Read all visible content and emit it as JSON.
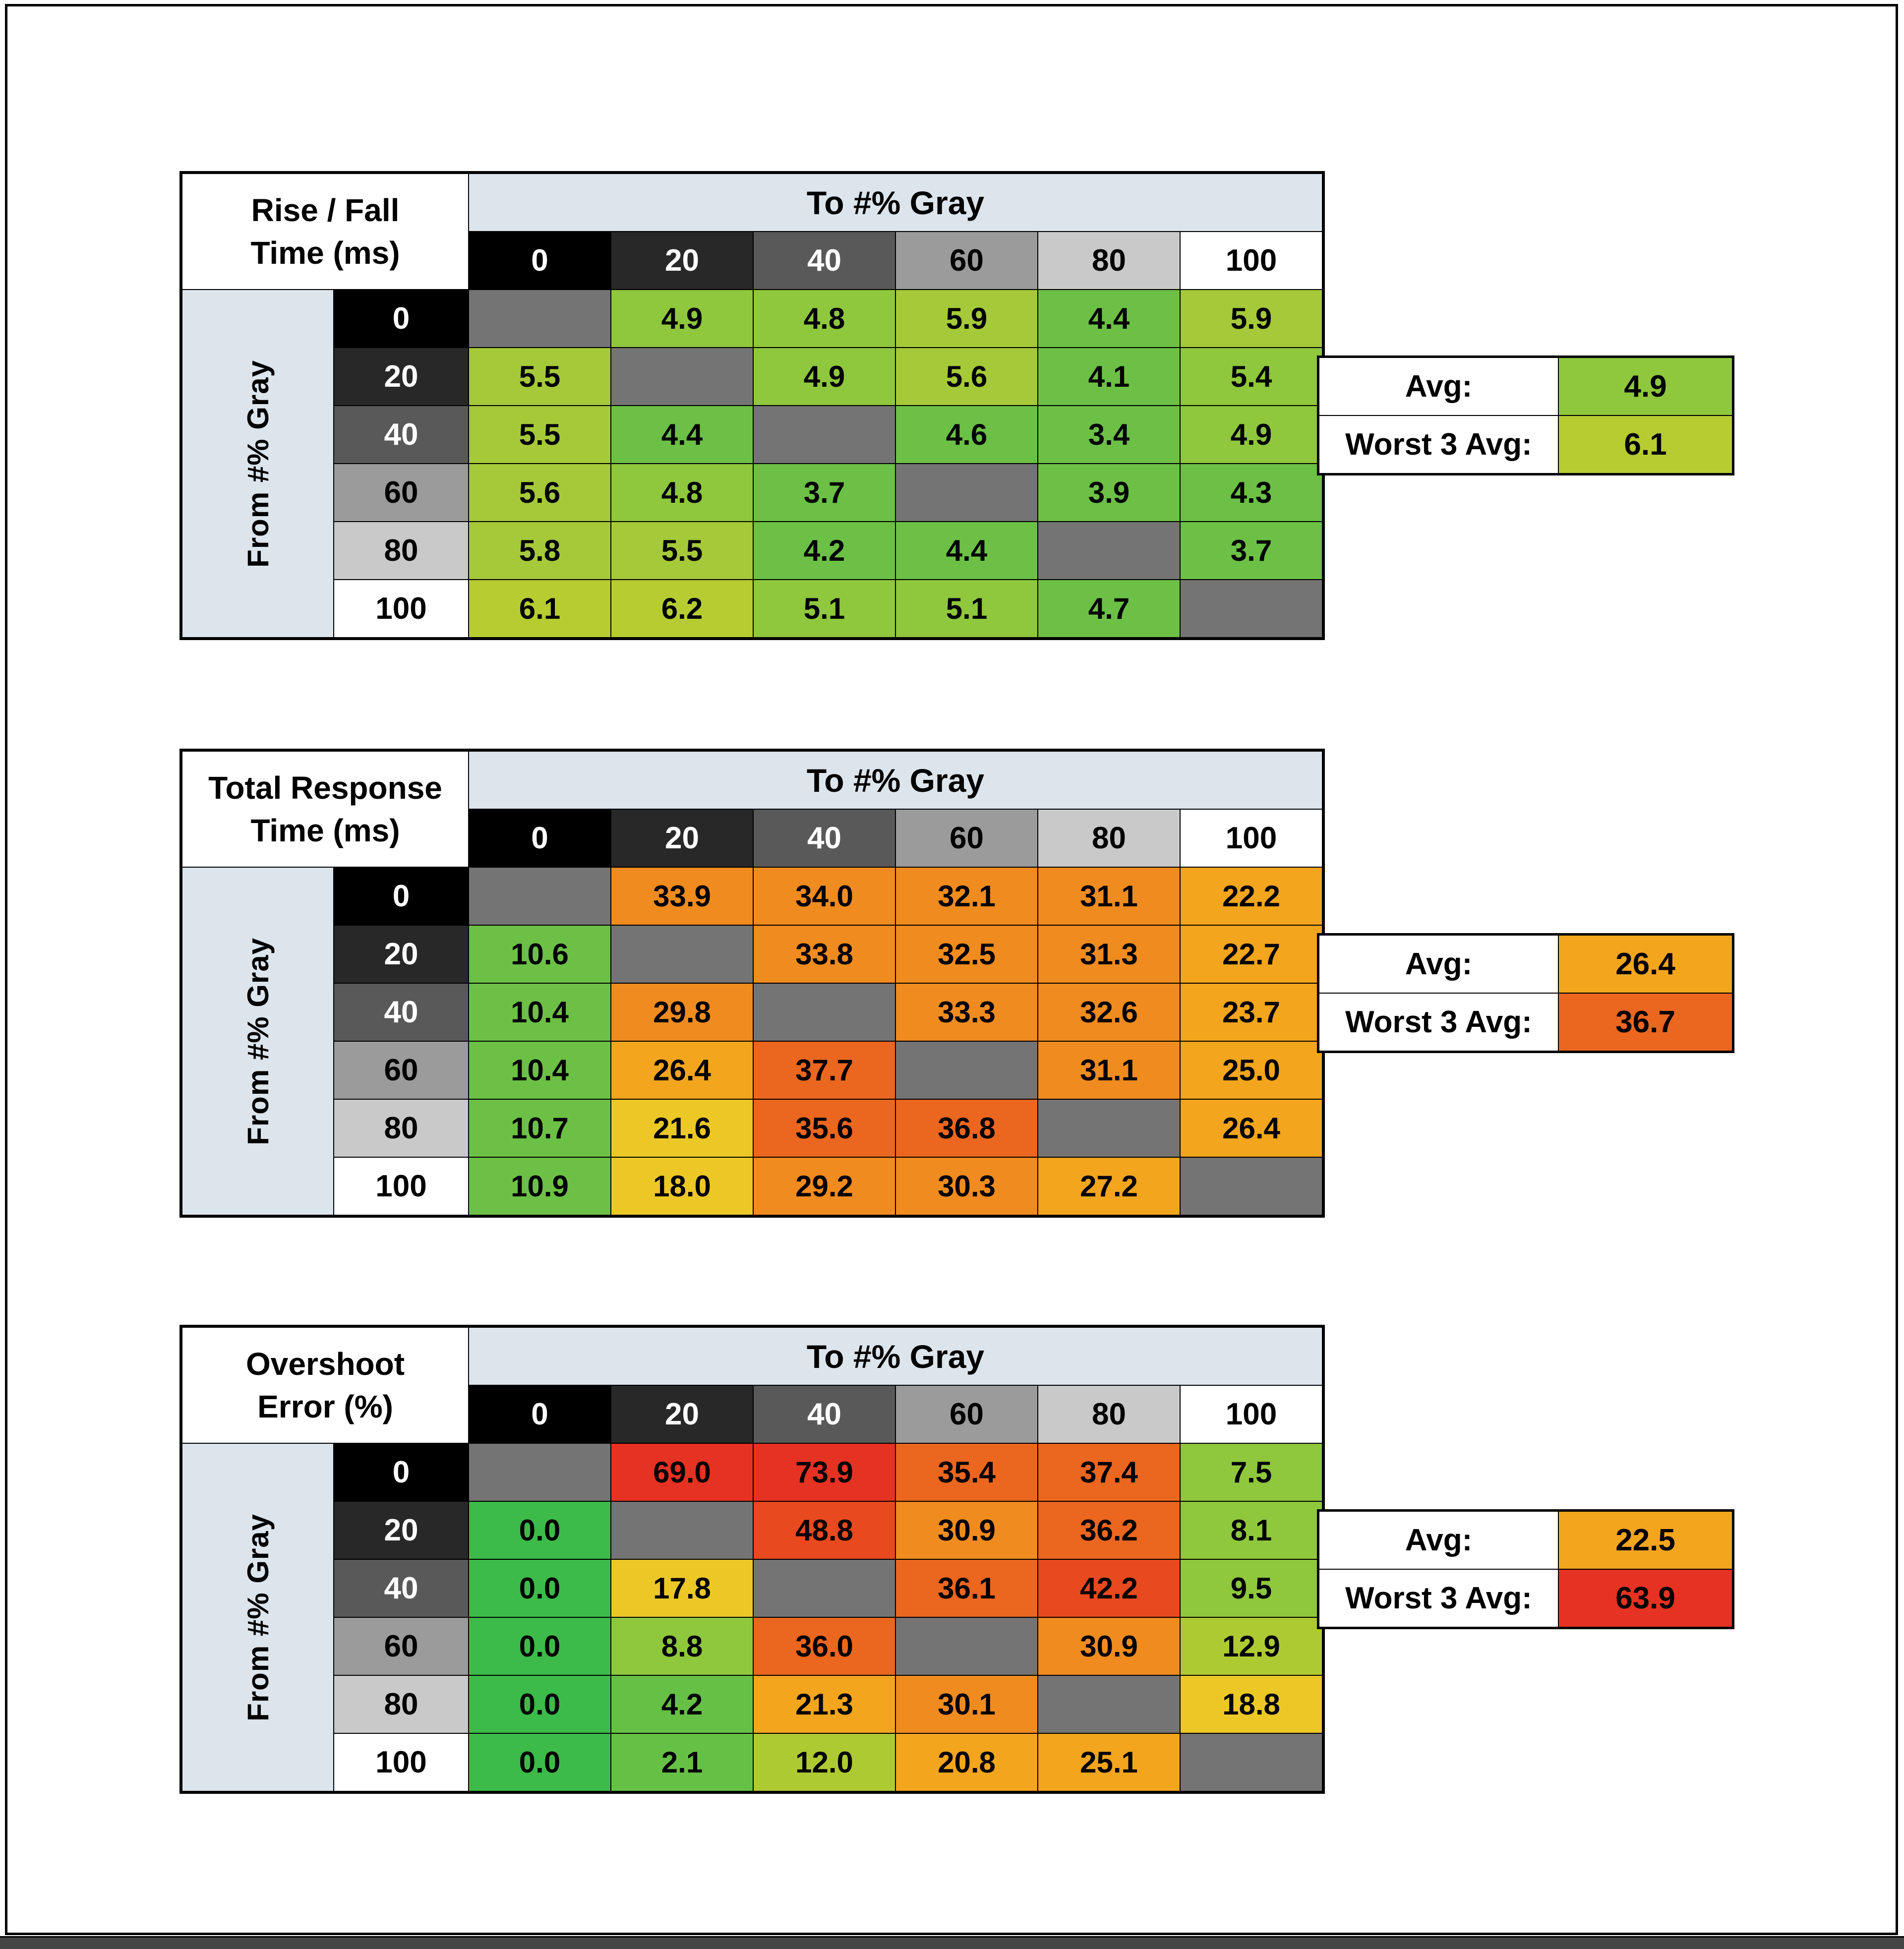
{
  "palette": {
    "page_bg": "#ffffff",
    "frame_border": "#000000",
    "bottom_bar_bg": "#454545",
    "band_bg": "#dce4ec",
    "diagonal_bg": "#747474",
    "grid_line": "#000000",
    "gray_levels": [
      {
        "label": "0",
        "bg": "#000000",
        "fg": "#ffffff"
      },
      {
        "label": "20",
        "bg": "#282828",
        "fg": "#ffffff"
      },
      {
        "label": "40",
        "bg": "#595959",
        "fg": "#ffffff"
      },
      {
        "label": "60",
        "bg": "#9b9b9b",
        "fg": "#000000"
      },
      {
        "label": "80",
        "bg": "#c9c9c9",
        "fg": "#000000"
      },
      {
        "label": "100",
        "bg": "#ffffff",
        "fg": "#000000"
      }
    ]
  },
  "chart_data": [
    {
      "type": "heatmap",
      "title_lines": [
        "Rise / Fall",
        "Time (ms)"
      ],
      "col_axis_label": "To #% Gray",
      "row_axis_label": "From #% Gray",
      "col_labels": [
        "0",
        "20",
        "40",
        "60",
        "80",
        "100"
      ],
      "row_labels": [
        "0",
        "20",
        "40",
        "60",
        "80",
        "100"
      ],
      "rows": [
        [
          null,
          4.9,
          4.8,
          5.9,
          4.4,
          5.9
        ],
        [
          5.5,
          null,
          4.9,
          5.6,
          4.1,
          5.4
        ],
        [
          5.5,
          4.4,
          null,
          4.6,
          3.4,
          4.9
        ],
        [
          5.6,
          4.8,
          3.7,
          null,
          3.9,
          4.3
        ],
        [
          5.8,
          5.5,
          4.2,
          4.4,
          null,
          3.7
        ],
        [
          6.1,
          6.2,
          5.1,
          5.1,
          4.7,
          null
        ]
      ],
      "stats": {
        "avg_label": "Avg:",
        "avg_value": 4.9,
        "worst_label": "Worst 3 Avg:",
        "worst_value": 6.1
      },
      "color_scale": [
        [
          4.75,
          "#6cc046"
        ],
        [
          5.45,
          "#8fc73d"
        ],
        [
          6.05,
          "#a5c938"
        ],
        [
          999,
          "#b7cc31"
        ]
      ]
    },
    {
      "type": "heatmap",
      "title_lines": [
        "Total Response",
        "Time (ms)"
      ],
      "col_axis_label": "To #% Gray",
      "row_axis_label": "From #% Gray",
      "col_labels": [
        "0",
        "20",
        "40",
        "60",
        "80",
        "100"
      ],
      "row_labels": [
        "0",
        "20",
        "40",
        "60",
        "80",
        "100"
      ],
      "rows": [
        [
          null,
          33.9,
          34.0,
          32.1,
          31.1,
          22.2
        ],
        [
          10.6,
          null,
          33.8,
          32.5,
          31.3,
          22.7
        ],
        [
          10.4,
          29.8,
          null,
          33.3,
          32.6,
          23.7
        ],
        [
          10.4,
          26.4,
          37.7,
          null,
          31.1,
          25.0
        ],
        [
          10.7,
          21.6,
          35.6,
          36.8,
          null,
          26.4
        ],
        [
          10.9,
          18.0,
          29.2,
          30.3,
          27.2,
          null
        ]
      ],
      "stats": {
        "avg_label": "Avg:",
        "avg_value": 26.4,
        "worst_label": "Worst 3 Avg:",
        "worst_value": 36.7
      },
      "color_scale": [
        [
          15,
          "#6cc046"
        ],
        [
          22,
          "#ecc827"
        ],
        [
          28,
          "#f2a51d"
        ],
        [
          35,
          "#ef8b1f"
        ],
        [
          999,
          "#eb661f"
        ]
      ]
    },
    {
      "type": "heatmap",
      "title_lines": [
        "Overshoot",
        "Error (%)"
      ],
      "col_axis_label": "To #% Gray",
      "row_axis_label": "From #% Gray",
      "col_labels": [
        "0",
        "20",
        "40",
        "60",
        "80",
        "100"
      ],
      "row_labels": [
        "0",
        "20",
        "40",
        "60",
        "80",
        "100"
      ],
      "rows": [
        [
          null,
          69.0,
          73.9,
          35.4,
          37.4,
          7.5
        ],
        [
          0.0,
          null,
          48.8,
          30.9,
          36.2,
          8.1
        ],
        [
          0.0,
          17.8,
          null,
          36.1,
          42.2,
          9.5
        ],
        [
          0.0,
          8.8,
          36.0,
          null,
          30.9,
          12.9
        ],
        [
          0.0,
          4.2,
          21.3,
          30.1,
          null,
          18.8
        ],
        [
          0.0,
          2.1,
          12.0,
          20.8,
          25.1,
          null
        ]
      ],
      "stats": {
        "avg_label": "Avg:",
        "avg_value": 22.5,
        "worst_label": "Worst 3 Avg:",
        "worst_value": 63.9
      },
      "color_scale": [
        [
          0.5,
          "#3cbb4a"
        ],
        [
          5,
          "#67c046"
        ],
        [
          10,
          "#8fc73d"
        ],
        [
          15,
          "#aeca33"
        ],
        [
          20,
          "#ecc827"
        ],
        [
          28,
          "#f2a51d"
        ],
        [
          34,
          "#ef8b1f"
        ],
        [
          40,
          "#eb661f"
        ],
        [
          55,
          "#e8491f"
        ],
        [
          999,
          "#e63222"
        ]
      ]
    }
  ]
}
